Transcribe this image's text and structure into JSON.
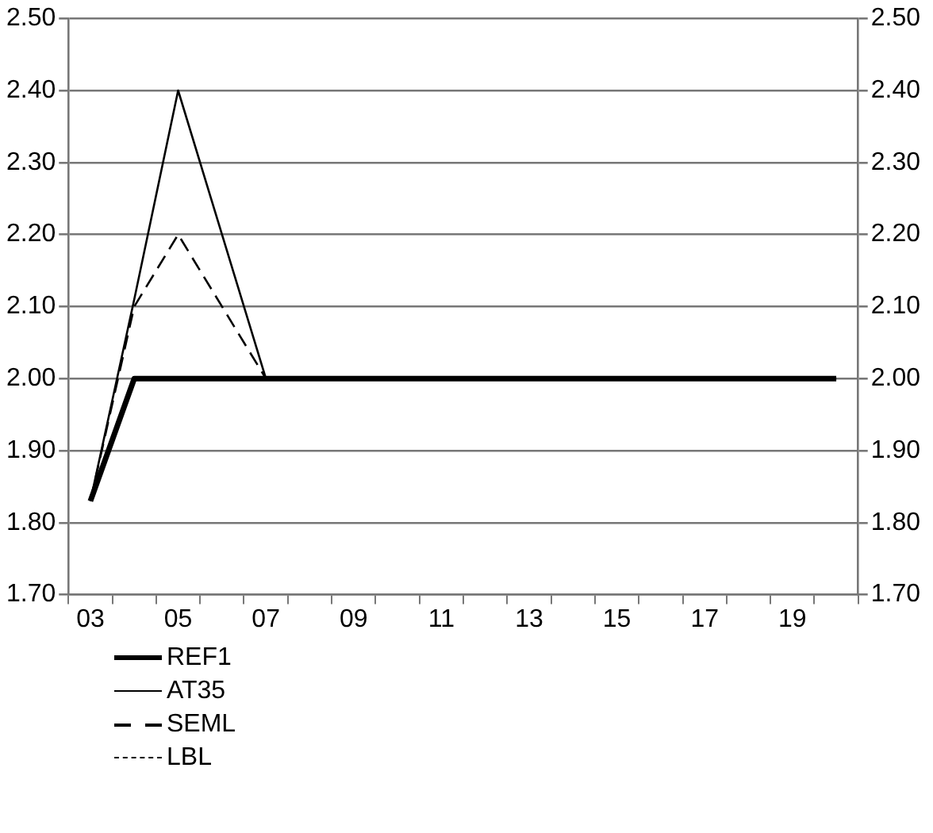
{
  "chart_data": {
    "type": "line",
    "categories": [
      "03",
      null,
      "05",
      null,
      "07",
      null,
      "09",
      null,
      "11",
      null,
      "13",
      null,
      "15",
      null,
      "17",
      null,
      "19",
      null
    ],
    "series": [
      {
        "name": "REF1",
        "color": "#000000",
        "line_style": "solid",
        "values": [
          1.83,
          2.0,
          2.0,
          2.0,
          2.0,
          2.0,
          2.0,
          2.0,
          2.0,
          2.0,
          2.0,
          2.0,
          2.0,
          2.0,
          2.0,
          2.0,
          2.0,
          2.0
        ]
      },
      {
        "name": "AT35",
        "color": "#000000",
        "line_style": "solid",
        "values": [
          1.83,
          2.11,
          2.4,
          2.2,
          2.0,
          2.0,
          2.0,
          2.0,
          2.0,
          2.0,
          2.0,
          2.0,
          2.0,
          2.0,
          2.0,
          2.0,
          2.0,
          2.0
        ]
      },
      {
        "name": "SEML",
        "color": "#000000",
        "line_style": "dashed",
        "values": [
          1.83,
          2.1,
          2.2,
          2.1,
          2.0,
          2.0,
          2.0,
          2.0,
          2.0,
          2.0,
          2.0,
          2.0,
          2.0,
          2.0,
          2.0,
          2.0,
          2.0,
          2.0
        ]
      },
      {
        "name": "LBL",
        "color": "#000000",
        "line_style": "dotted",
        "values": [
          null,
          null,
          null,
          null,
          null,
          null,
          null,
          null,
          null,
          null,
          null,
          null,
          null,
          null,
          null,
          null,
          null,
          null
        ]
      }
    ],
    "ylim": [
      1.7,
      2.5
    ],
    "yticks": [
      {
        "value": 1.7,
        "label": "1.70"
      },
      {
        "value": 1.8,
        "label": "1.80"
      },
      {
        "value": 1.9,
        "label": "1.90"
      },
      {
        "value": 2.0,
        "label": "2.00"
      },
      {
        "value": 2.1,
        "label": "2.10"
      },
      {
        "value": 2.2,
        "label": "2.20"
      },
      {
        "value": 2.3,
        "label": "2.30"
      },
      {
        "value": 2.4,
        "label": "2.40"
      },
      {
        "value": 2.5,
        "label": "2.50"
      }
    ],
    "y2lim": [
      1.7,
      2.5
    ],
    "y2ticks": [
      {
        "value": 1.7,
        "label": "1.70"
      },
      {
        "value": 1.8,
        "label": "1.80"
      },
      {
        "value": 1.9,
        "label": "1.90"
      },
      {
        "value": 2.0,
        "label": "2.00"
      },
      {
        "value": 2.1,
        "label": "2.10"
      },
      {
        "value": 2.2,
        "label": "2.20"
      },
      {
        "value": 2.3,
        "label": "2.30"
      },
      {
        "value": 2.4,
        "label": "2.40"
      },
      {
        "value": 2.5,
        "label": "2.50"
      }
    ],
    "grid": "y",
    "legend": "bottom left",
    "marker": "none"
  }
}
